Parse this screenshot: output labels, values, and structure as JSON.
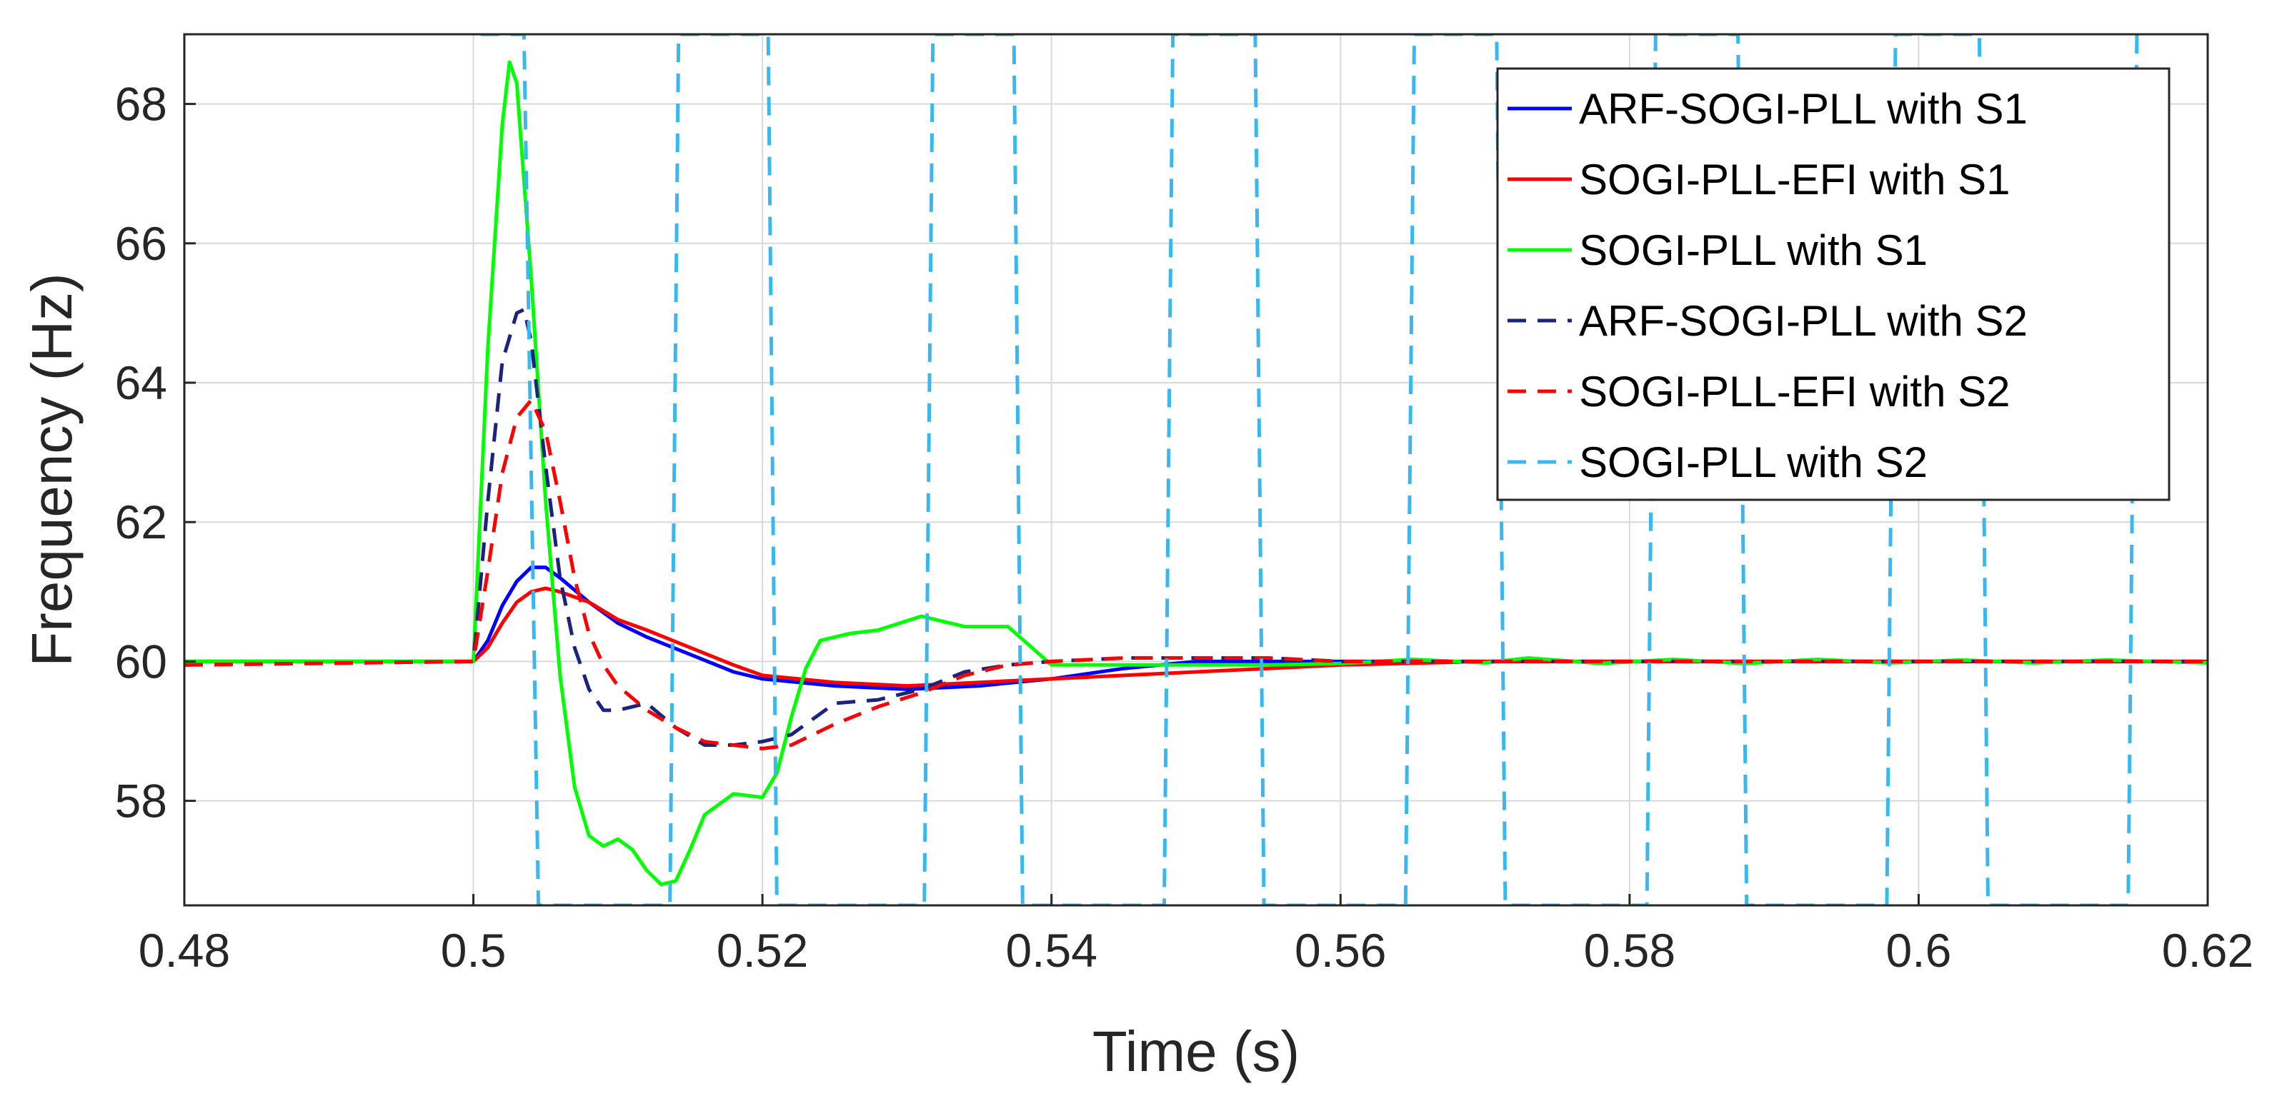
{
  "chart_data": {
    "type": "line",
    "title": "",
    "xlabel": "Time (s)",
    "ylabel": "Frequency (Hz)",
    "xlim": [
      0.48,
      0.62
    ],
    "ylim": [
      56.5,
      69
    ],
    "xticks": [
      0.48,
      0.5,
      0.52,
      0.54,
      0.56,
      0.58,
      0.6,
      0.62
    ],
    "xtick_labels": [
      "0.48",
      "0.5",
      "0.52",
      "0.54",
      "0.56",
      "0.58",
      "0.6",
      "0.62"
    ],
    "yticks": [
      58,
      60,
      62,
      64,
      66,
      68
    ],
    "ytick_labels": [
      "58",
      "60",
      "62",
      "64",
      "66",
      "68"
    ],
    "grid": true,
    "legend_position": "top-right",
    "series": [
      {
        "name": "ARF-SOGI-PLL with S1",
        "color": "#0000ff",
        "dash": "solid",
        "x": [
          0.48,
          0.5,
          0.501,
          0.502,
          0.503,
          0.504,
          0.505,
          0.506,
          0.508,
          0.51,
          0.512,
          0.515,
          0.518,
          0.52,
          0.525,
          0.53,
          0.535,
          0.54,
          0.545,
          0.55,
          0.555,
          0.56,
          0.57,
          0.58,
          0.59,
          0.6,
          0.61,
          0.62
        ],
        "y": [
          60,
          60,
          60.3,
          60.8,
          61.15,
          61.35,
          61.35,
          61.2,
          60.85,
          60.55,
          60.35,
          60.1,
          59.85,
          59.75,
          59.65,
          59.6,
          59.65,
          59.75,
          59.9,
          60.0,
          60.0,
          60.0,
          60.0,
          60.0,
          60.0,
          60.0,
          60.0,
          60.0
        ]
      },
      {
        "name": "SOGI-PLL-EFI with S1",
        "color": "#ff0000",
        "dash": "solid",
        "x": [
          0.48,
          0.5,
          0.501,
          0.502,
          0.503,
          0.504,
          0.505,
          0.506,
          0.508,
          0.51,
          0.512,
          0.515,
          0.518,
          0.52,
          0.525,
          0.53,
          0.535,
          0.54,
          0.545,
          0.55,
          0.555,
          0.56,
          0.57,
          0.58,
          0.59,
          0.6,
          0.61,
          0.62
        ],
        "y": [
          60,
          60,
          60.2,
          60.55,
          60.85,
          61.0,
          61.05,
          61.0,
          60.85,
          60.6,
          60.45,
          60.2,
          59.95,
          59.8,
          59.7,
          59.65,
          59.7,
          59.75,
          59.8,
          59.85,
          59.9,
          59.95,
          60.0,
          60.0,
          60.0,
          60.0,
          60.0,
          60.0
        ]
      },
      {
        "name": "SOGI-PLL with S1",
        "color": "#00ff00",
        "dash": "solid",
        "x": [
          0.48,
          0.5,
          0.501,
          0.502,
          0.5025,
          0.503,
          0.504,
          0.505,
          0.506,
          0.507,
          0.508,
          0.509,
          0.51,
          0.511,
          0.512,
          0.513,
          0.514,
          0.515,
          0.516,
          0.518,
          0.52,
          0.521,
          0.522,
          0.523,
          0.524,
          0.526,
          0.528,
          0.531,
          0.534,
          0.537,
          0.54,
          0.545,
          0.55,
          0.555,
          0.56,
          0.565,
          0.57,
          0.573,
          0.578,
          0.583,
          0.588,
          0.593,
          0.598,
          0.603,
          0.608,
          0.613,
          0.62
        ],
        "y": [
          60,
          60,
          64.5,
          67.7,
          68.6,
          68.3,
          65.5,
          62.3,
          59.8,
          58.2,
          57.5,
          57.35,
          57.45,
          57.3,
          57.0,
          56.8,
          56.85,
          57.3,
          57.8,
          58.1,
          58.05,
          58.4,
          59.2,
          59.9,
          60.3,
          60.4,
          60.45,
          60.65,
          60.5,
          60.5,
          59.95,
          59.95,
          59.95,
          59.95,
          59.97,
          60.03,
          59.98,
          60.05,
          59.97,
          60.03,
          59.97,
          60.03,
          59.98,
          60.02,
          59.98,
          60.02,
          59.98
        ]
      },
      {
        "name": "ARF-SOGI-PLL with S2",
        "color": "#1a237e",
        "dash": "dashed",
        "x": [
          0.48,
          0.5,
          0.501,
          0.502,
          0.503,
          0.5035,
          0.504,
          0.505,
          0.506,
          0.507,
          0.508,
          0.509,
          0.51,
          0.512,
          0.514,
          0.516,
          0.518,
          0.52,
          0.522,
          0.525,
          0.528,
          0.531,
          0.534,
          0.537,
          0.54,
          0.545,
          0.55,
          0.555,
          0.56,
          0.57,
          0.58,
          0.59,
          0.6,
          0.61,
          0.62
        ],
        "y": [
          59.95,
          60,
          62.3,
          64.3,
          65.0,
          65.05,
          64.6,
          62.8,
          61.2,
          60.2,
          59.6,
          59.3,
          59.3,
          59.4,
          59.05,
          58.8,
          58.8,
          58.85,
          58.95,
          59.4,
          59.45,
          59.6,
          59.85,
          59.95,
          60.0,
          60.05,
          60.05,
          60.05,
          60.0,
          60.0,
          60.0,
          60.0,
          60.0,
          60.0,
          60.0
        ]
      },
      {
        "name": "SOGI-PLL-EFI with S2",
        "color": "#ff0000",
        "dash": "dashed",
        "x": [
          0.48,
          0.5,
          0.501,
          0.502,
          0.503,
          0.504,
          0.505,
          0.506,
          0.507,
          0.508,
          0.509,
          0.51,
          0.512,
          0.514,
          0.516,
          0.518,
          0.52,
          0.522,
          0.525,
          0.528,
          0.531,
          0.534,
          0.537,
          0.54,
          0.545,
          0.55,
          0.555,
          0.56,
          0.57,
          0.58,
          0.59,
          0.6,
          0.61,
          0.62
        ],
        "y": [
          59.95,
          60,
          61.3,
          62.7,
          63.5,
          63.75,
          63.3,
          62.3,
          61.2,
          60.4,
          59.95,
          59.65,
          59.3,
          59.05,
          58.85,
          58.8,
          58.75,
          58.8,
          59.1,
          59.35,
          59.55,
          59.8,
          59.95,
          60.0,
          60.05,
          60.05,
          60.05,
          60.0,
          60.0,
          60.0,
          60.0,
          60.0,
          60.0,
          60.0
        ]
      },
      {
        "name": "SOGI-PLL with S2",
        "color": "#39b8f0",
        "dash": "dashed",
        "style": "vertical spikes",
        "x": [
          0.5005,
          0.5035,
          0.5045,
          0.5136,
          0.5142,
          0.5204,
          0.521,
          0.5312,
          0.5318,
          0.5374,
          0.538,
          0.5478,
          0.5484,
          0.5541,
          0.5547,
          0.5645,
          0.5651,
          0.5708,
          0.5714,
          0.5812,
          0.5818,
          0.5875,
          0.5881,
          0.5978,
          0.5984,
          0.6042,
          0.6048,
          0.6145,
          0.6151
        ],
        "y": [
          69,
          69,
          56.5,
          56.5,
          69,
          69,
          56.5,
          56.5,
          69,
          69,
          56.5,
          56.5,
          69,
          69,
          56.5,
          56.5,
          69,
          69,
          56.5,
          56.5,
          69,
          69,
          56.5,
          56.5,
          69,
          69,
          56.5,
          56.5,
          69
        ]
      }
    ]
  }
}
